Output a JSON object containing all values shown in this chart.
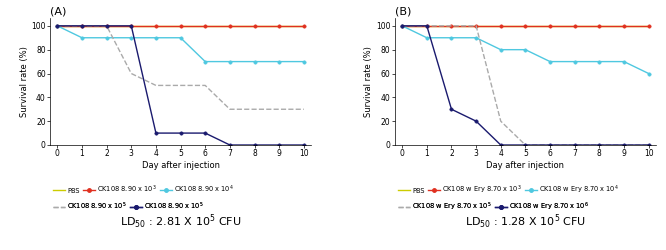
{
  "panel_A": {
    "title": "(A)",
    "ld50": "LD$_{50}$ : 2.81 X 10$^5$ CFU",
    "xlabel": "Day after injection",
    "ylabel": "Survival rate (%)",
    "ylim": [
      0,
      107
    ],
    "xlim": [
      -0.3,
      10.3
    ],
    "xticks": [
      0,
      1,
      2,
      3,
      4,
      5,
      6,
      7,
      8,
      9,
      10
    ],
    "yticks": [
      0,
      20,
      40,
      60,
      80,
      100
    ],
    "series": [
      {
        "label": "PBS",
        "color": "#CCCC00",
        "linestyle": "-",
        "marker": "None",
        "markersize": 0,
        "linewidth": 1.0,
        "x": [
          0,
          1,
          2,
          3,
          4,
          5,
          6,
          7,
          8,
          9,
          10
        ],
        "y": [
          100,
          100,
          100,
          100,
          100,
          100,
          100,
          100,
          100,
          100,
          100
        ]
      },
      {
        "label": "CK108 8.90 x 10$^3$",
        "color": "#E03020",
        "linestyle": "-",
        "marker": "o",
        "markersize": 2.5,
        "linewidth": 1.0,
        "x": [
          0,
          1,
          2,
          3,
          4,
          5,
          6,
          7,
          8,
          9,
          10
        ],
        "y": [
          100,
          100,
          100,
          100,
          100,
          100,
          100,
          100,
          100,
          100,
          100
        ]
      },
      {
        "label": "CK108 8.90 x 10$^4$",
        "color": "#4FC8E0",
        "linestyle": "-",
        "marker": "o",
        "markersize": 2.5,
        "linewidth": 1.0,
        "x": [
          0,
          1,
          2,
          3,
          4,
          5,
          6,
          7,
          8,
          9,
          10
        ],
        "y": [
          100,
          90,
          90,
          90,
          90,
          90,
          70,
          70,
          70,
          70,
          70
        ]
      },
      {
        "label": "CK108 8.90 x 10$^5$ (gray)",
        "color": "#AAAAAA",
        "linestyle": "--",
        "marker": "None",
        "markersize": 0,
        "linewidth": 1.0,
        "x": [
          0,
          1,
          2,
          3,
          4,
          5,
          6,
          7,
          8,
          9,
          10
        ],
        "y": [
          100,
          100,
          100,
          60,
          50,
          50,
          50,
          30,
          30,
          30,
          30
        ]
      },
      {
        "label": "CK108 8.90 x 10$^5$",
        "color": "#1A1A6E",
        "linestyle": "-",
        "marker": "o",
        "markersize": 2.5,
        "linewidth": 1.0,
        "x": [
          0,
          1,
          2,
          3,
          4,
          5,
          6,
          7,
          8,
          9,
          10
        ],
        "y": [
          100,
          100,
          100,
          100,
          10,
          10,
          10,
          0,
          0,
          0,
          0
        ]
      }
    ]
  },
  "panel_B": {
    "title": "(B)",
    "ld50": "LD$_{50}$ : 1.28 X 10$^5$ CFU",
    "xlabel": "Day after injection",
    "ylabel": "Survival rate (%)",
    "ylim": [
      0,
      107
    ],
    "xlim": [
      -0.3,
      10.3
    ],
    "xticks": [
      0,
      1,
      2,
      3,
      4,
      5,
      6,
      7,
      8,
      9,
      10
    ],
    "yticks": [
      0,
      20,
      40,
      60,
      80,
      100
    ],
    "series": [
      {
        "label": "PBS",
        "color": "#CCCC00",
        "linestyle": "-",
        "marker": "None",
        "markersize": 0,
        "linewidth": 1.0,
        "x": [
          0,
          1,
          2,
          3,
          4,
          5,
          6,
          7,
          8,
          9,
          10
        ],
        "y": [
          100,
          100,
          100,
          100,
          100,
          100,
          100,
          100,
          100,
          100,
          100
        ]
      },
      {
        "label": "CK108 w Ery 8.70 x 10$^3$",
        "color": "#E03020",
        "linestyle": "-",
        "marker": "o",
        "markersize": 2.5,
        "linewidth": 1.0,
        "x": [
          0,
          1,
          2,
          3,
          4,
          5,
          6,
          7,
          8,
          9,
          10
        ],
        "y": [
          100,
          100,
          100,
          100,
          100,
          100,
          100,
          100,
          100,
          100,
          100
        ]
      },
      {
        "label": "CK108 w Ery 8.70 x 10$^4$",
        "color": "#4FC8E0",
        "linestyle": "-",
        "marker": "o",
        "markersize": 2.5,
        "linewidth": 1.0,
        "x": [
          0,
          1,
          2,
          3,
          4,
          5,
          6,
          7,
          8,
          9,
          10
        ],
        "y": [
          100,
          90,
          90,
          90,
          80,
          80,
          70,
          70,
          70,
          70,
          60
        ]
      },
      {
        "label": "CK108 w Ery 8.70 x 10$^5$",
        "color": "#AAAAAA",
        "linestyle": "--",
        "marker": "None",
        "markersize": 0,
        "linewidth": 1.0,
        "x": [
          0,
          1,
          2,
          3,
          4,
          5,
          6,
          7,
          8,
          9,
          10
        ],
        "y": [
          100,
          100,
          100,
          100,
          20,
          0,
          0,
          0,
          0,
          0,
          0
        ]
      },
      {
        "label": "CK108 w Ery 8.70 x 10$^6$",
        "color": "#1A1A6E",
        "linestyle": "-",
        "marker": "o",
        "markersize": 2.5,
        "linewidth": 1.0,
        "x": [
          0,
          1,
          2,
          3,
          4,
          5,
          6,
          7,
          8,
          9,
          10
        ],
        "y": [
          100,
          100,
          30,
          20,
          0,
          0,
          0,
          0,
          0,
          0,
          0
        ]
      }
    ]
  },
  "bg_color": "#FFFFFF",
  "fontsize_title": 8,
  "fontsize_axis_label": 6,
  "fontsize_tick": 5.5,
  "fontsize_legend": 4.8,
  "fontsize_ld50": 8
}
